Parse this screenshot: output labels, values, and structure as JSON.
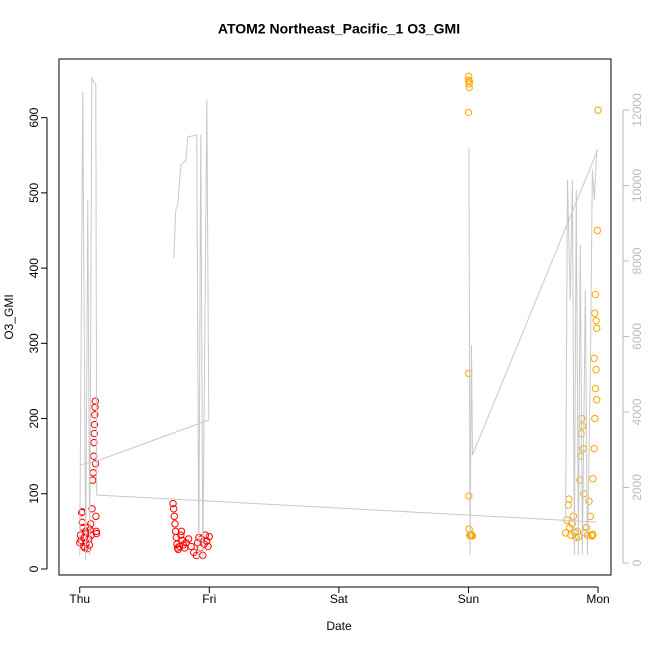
{
  "chart_data": {
    "type": "scatter",
    "title": "ATOM2 Northeast_Pacific_1 O3_GMI",
    "x_label": "Date",
    "y_label": "O3_GMI",
    "xlim": [
      -0.16,
      4.1
    ],
    "xticks": [
      {
        "value": 0,
        "label": "Thu"
      },
      {
        "value": 1,
        "label": "Fri"
      },
      {
        "value": 2,
        "label": "Sat"
      },
      {
        "value": 3,
        "label": "Sun"
      },
      {
        "value": 4,
        "label": "Mon"
      }
    ],
    "ylim": [
      -8,
      678
    ],
    "yticks": [
      0,
      100,
      200,
      300,
      400,
      500,
      600
    ],
    "y2lim": [
      -318,
      13350
    ],
    "y2ticks": [
      0,
      2000,
      4000,
      6000,
      8000,
      10000,
      12000
    ],
    "y2_color": "#bbbbbb",
    "series": [
      {
        "color": "#ff0000",
        "x": [
          0.0,
          0.005,
          0.01,
          0.015,
          0.02,
          0.02,
          0.025,
          0.03,
          0.035,
          0.04,
          0.045,
          0.05,
          0.055,
          0.06,
          0.065,
          0.07,
          0.075,
          0.08,
          0.085,
          0.09,
          0.095,
          0.1,
          0.105,
          0.108,
          0.11,
          0.112,
          0.114,
          0.116,
          0.118,
          0.12,
          0.122,
          0.125,
          0.128,
          0.13,
          0.72,
          0.725,
          0.73,
          0.735,
          0.74,
          0.745,
          0.75,
          0.755,
          0.76,
          0.77,
          0.78,
          0.785,
          0.79,
          0.8,
          0.81,
          0.82,
          0.84,
          0.86,
          0.88,
          0.9,
          0.91,
          0.92,
          0.93,
          0.94,
          0.95,
          0.96,
          0.97,
          0.98,
          0.99,
          1.0
        ],
        "values": [
          35,
          45,
          38,
          75,
          76,
          62,
          55,
          30,
          42,
          28,
          50,
          35,
          48,
          27,
          55,
          40,
          32,
          52,
          60,
          45,
          80,
          118,
          128,
          150,
          168,
          180,
          192,
          205,
          215,
          223,
          140,
          70,
          50,
          47,
          87,
          80,
          70,
          60,
          50,
          42,
          33,
          28,
          26,
          30,
          45,
          50,
          38,
          32,
          28,
          35,
          40,
          30,
          22,
          18,
          35,
          42,
          28,
          40,
          18,
          33,
          45,
          37,
          30,
          43
        ]
      },
      {
        "color": "#ffa500",
        "x": [
          3.0,
          3.002,
          3.004,
          3.006,
          3.008,
          3.0,
          3.002,
          3.003,
          3.005,
          3.01,
          3.015,
          3.02,
          3.025,
          3.03,
          3.75,
          3.76,
          3.77,
          3.775,
          3.78,
          3.79,
          3.8,
          3.81,
          3.82,
          3.83,
          3.84,
          3.85,
          3.86,
          3.865,
          3.87,
          3.875,
          3.88,
          3.885,
          3.89,
          3.9,
          3.91,
          3.92,
          3.93,
          3.94,
          3.95,
          3.96,
          3.97,
          3.975,
          3.98,
          3.985,
          3.99,
          3.995,
          4.0,
          3.99,
          3.985,
          3.98,
          3.975,
          3.97,
          3.96,
          3.955
        ],
        "values": [
          650,
          655,
          645,
          640,
          648,
          607,
          260,
          97,
          53,
          45,
          44,
          46,
          45,
          44,
          48,
          65,
          85,
          93,
          55,
          45,
          60,
          70,
          48,
          42,
          50,
          43,
          118,
          150,
          180,
          200,
          190,
          160,
          100,
          48,
          55,
          45,
          90,
          70,
          45,
          120,
          280,
          340,
          365,
          330,
          225,
          450,
          610,
          320,
          265,
          240,
          200,
          160,
          46,
          44
        ]
      },
      {
        "type": "line",
        "axis": "y2",
        "color": "#c8c8c8",
        "x": [
          0.0,
          0.023,
          0.046,
          0.062,
          0.077,
          0.093,
          0.124,
          0.131,
          3.992,
          null,
          0.0,
          0.131,
          0.996,
          null,
          0.726,
          0.741,
          0.757,
          0.78,
          0.819,
          0.834,
          0.903,
          0.919,
          0.934,
          0.95,
          0.981,
          0.996,
          null,
          3.004,
          3.012,
          3.023,
          3.031,
          3.997,
          null,
          3.75,
          3.764,
          3.786,
          3.802,
          3.817,
          3.832,
          3.848,
          3.863,
          3.879,
          3.902,
          3.918,
          3.941,
          3.956,
          3.972,
          3.99
        ],
        "values": [
          212,
          12477,
          80,
          9616,
          212,
          12848,
          12662,
          1801,
          1086,
          null,
          2596,
          2700,
          3788,
          null,
          8079,
          9351,
          9483,
          10543,
          10675,
          11285,
          11338,
          80,
          11338,
          80,
          12265,
          3788,
          null,
          10993,
          212,
          5775,
          2861,
          10940,
          null,
          1200,
          10146,
          6967,
          10146,
          212,
          9881,
          212,
          8424,
          212,
          7232,
          212,
          5113,
          10411,
          9616,
          10940
        ]
      }
    ]
  }
}
